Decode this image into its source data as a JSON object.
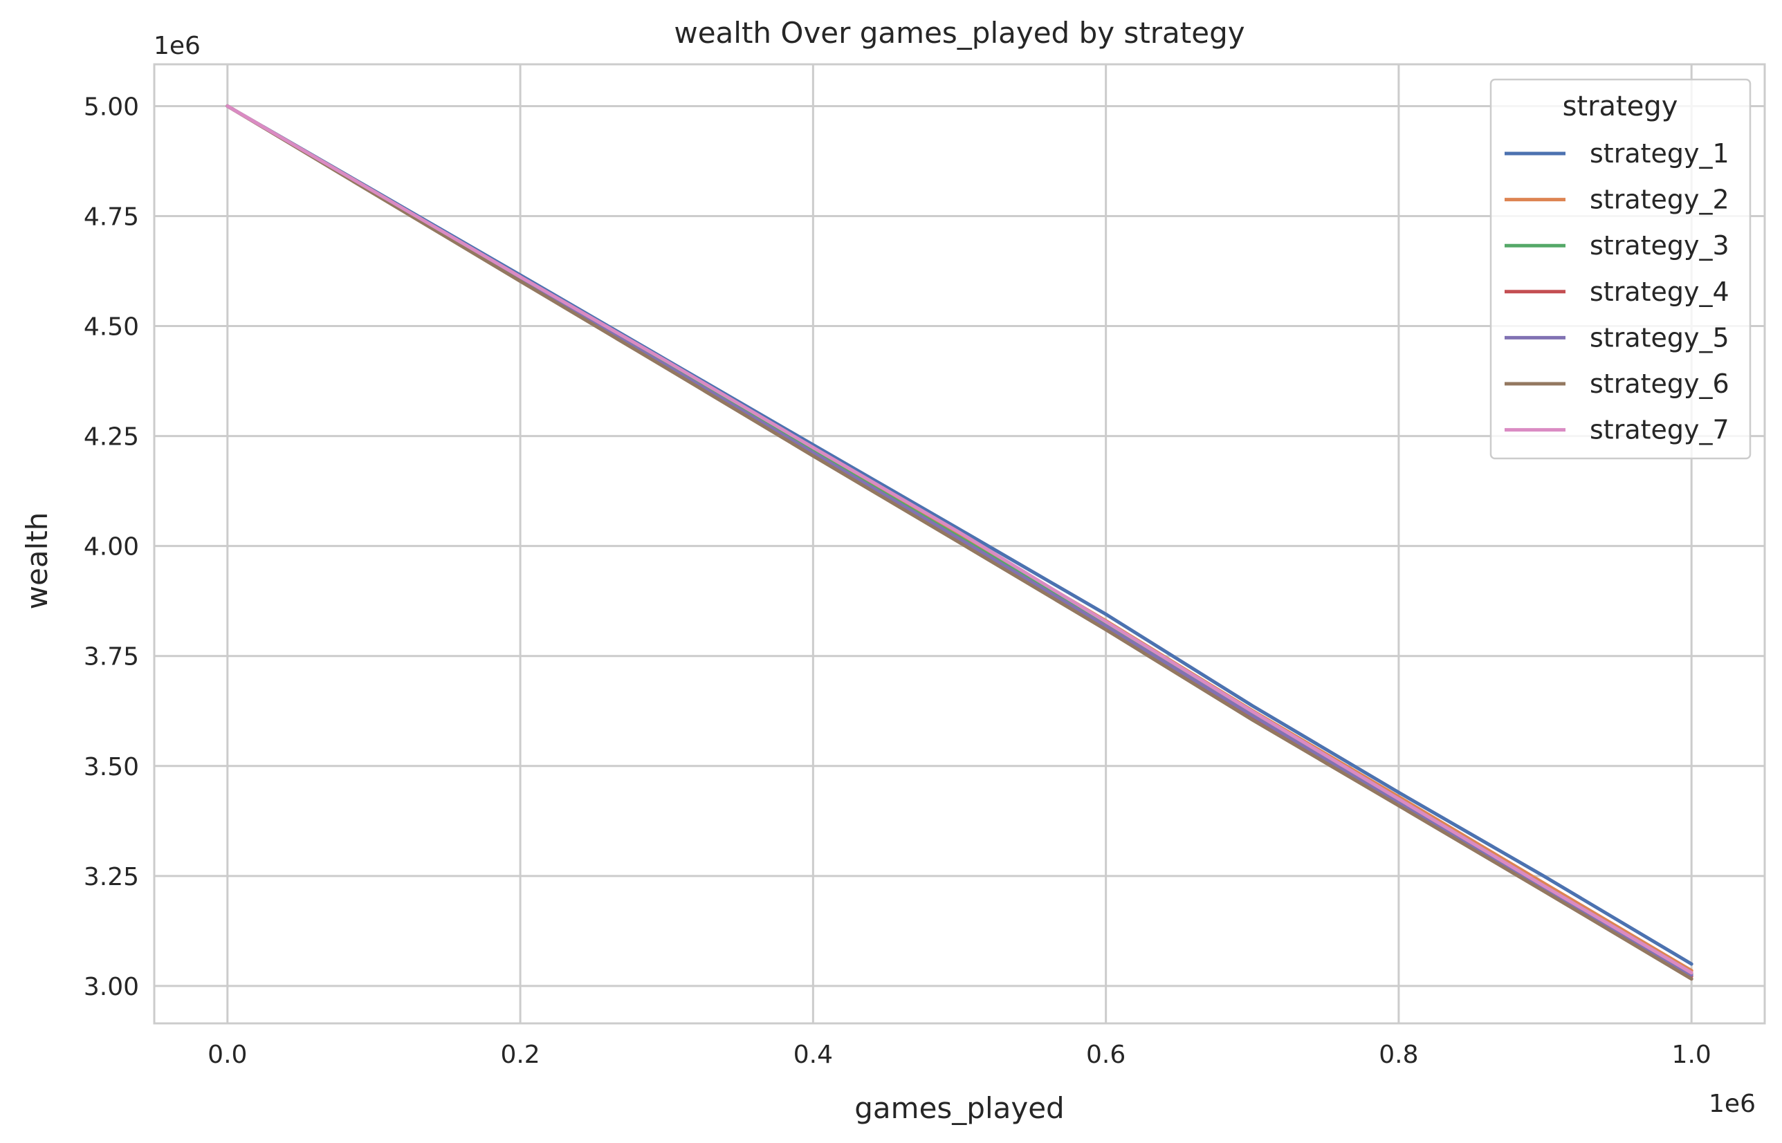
{
  "chart_data": {
    "type": "line",
    "title": "wealth Over games_played by strategy",
    "xlabel": "games_played",
    "ylabel": "wealth",
    "x_offset_text": "1e6",
    "y_offset_text": "1e6",
    "xlim": [
      -50000,
      1050000
    ],
    "ylim": [
      2915000,
      5095000
    ],
    "x_ticks": [
      0,
      200000,
      400000,
      600000,
      800000,
      1000000
    ],
    "x_tick_labels": [
      "0.0",
      "0.2",
      "0.4",
      "0.6",
      "0.8",
      "1.0"
    ],
    "y_ticks": [
      3000000,
      3250000,
      3500000,
      3750000,
      4000000,
      4250000,
      4500000,
      4750000,
      5000000
    ],
    "y_tick_labels": [
      "3.00",
      "3.25",
      "3.50",
      "3.75",
      "4.00",
      "4.25",
      "4.50",
      "4.75",
      "5.00"
    ],
    "grid": true,
    "legend_title": "strategy",
    "legend_position": "top-right",
    "x": [
      0,
      100000,
      200000,
      300000,
      400000,
      500000,
      600000,
      700000,
      800000,
      900000,
      1000000
    ],
    "series": [
      {
        "name": "strategy_1",
        "color": "#4c72b0",
        "values": [
          5000000,
          4808000,
          4616000,
          4423000,
          4230000,
          4038000,
          3845000,
          3637000,
          3440000,
          3248000,
          3050000
        ]
      },
      {
        "name": "strategy_2",
        "color": "#dd8452",
        "values": [
          5000000,
          4806000,
          4610000,
          4416000,
          4220000,
          4026000,
          3830000,
          3626000,
          3430000,
          3232000,
          3035000
        ]
      },
      {
        "name": "strategy_3",
        "color": "#55a868",
        "values": [
          5000000,
          4804000,
          4607000,
          4412000,
          4215000,
          4020000,
          3822000,
          3618000,
          3422000,
          3225000,
          3028000
        ]
      },
      {
        "name": "strategy_4",
        "color": "#c44e52",
        "values": [
          5000000,
          4802000,
          4604000,
          4408000,
          4210000,
          4014000,
          3816000,
          3612000,
          3416000,
          3220000,
          3022000
        ]
      },
      {
        "name": "strategy_5",
        "color": "#8172b3",
        "values": [
          5000000,
          4804000,
          4605000,
          4410000,
          4212000,
          4016000,
          3818000,
          3615000,
          3418000,
          3222000,
          3025000
        ]
      },
      {
        "name": "strategy_6",
        "color": "#937860",
        "values": [
          5000000,
          4801000,
          4602000,
          4404000,
          4205000,
          4008000,
          3810000,
          3605000,
          3410000,
          3214000,
          3016000
        ]
      },
      {
        "name": "strategy_7",
        "color": "#da8bc3",
        "values": [
          5000000,
          4806000,
          4612000,
          4420000,
          4224000,
          4031000,
          3828000,
          3624000,
          3425000,
          3226000,
          3030000
        ]
      }
    ]
  }
}
